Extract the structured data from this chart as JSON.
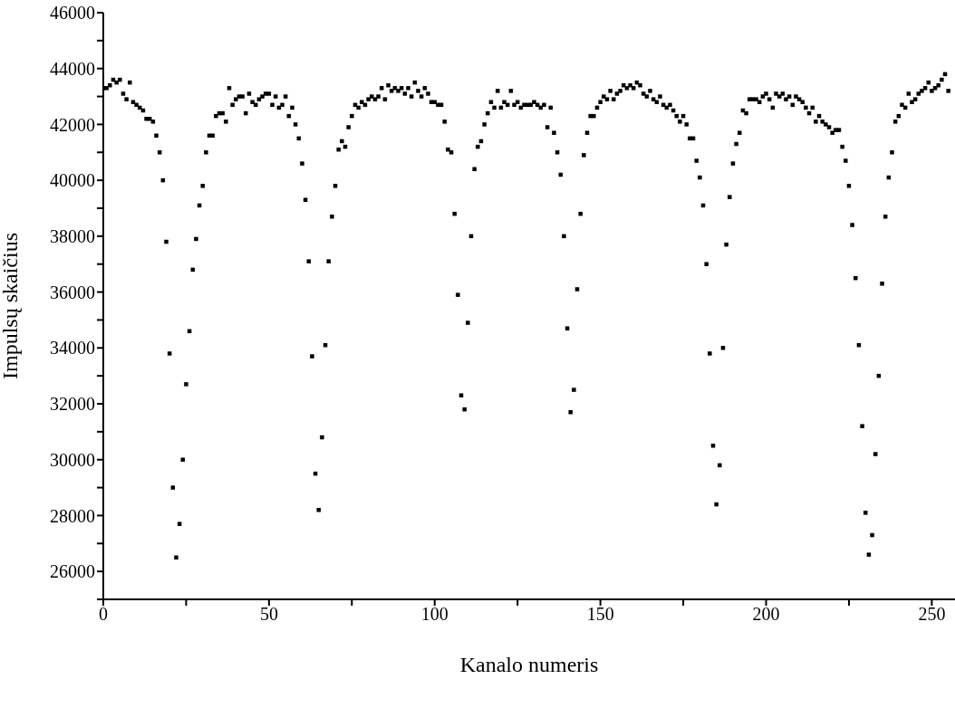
{
  "chart_data": {
    "type": "scatter",
    "xlabel": "Kanalo numeris",
    "ylabel": "Impulsų skaičius",
    "x": [
      0,
      1,
      2,
      3,
      4,
      5,
      6,
      7,
      8,
      9,
      10,
      11,
      12,
      13,
      14,
      15,
      16,
      17,
      18,
      19,
      20,
      21,
      22,
      23,
      24,
      25,
      26,
      27,
      28,
      29,
      30,
      31,
      32,
      33,
      34,
      35,
      36,
      37,
      38,
      39,
      40,
      41,
      42,
      43,
      44,
      45,
      46,
      47,
      48,
      49,
      50,
      51,
      52,
      53,
      54,
      55,
      56,
      57,
      58,
      59,
      60,
      61,
      62,
      63,
      64,
      65,
      66,
      67,
      68,
      69,
      70,
      71,
      72,
      73,
      74,
      75,
      76,
      77,
      78,
      79,
      80,
      81,
      82,
      83,
      84,
      85,
      86,
      87,
      88,
      89,
      90,
      91,
      92,
      93,
      94,
      95,
      96,
      97,
      98,
      99,
      100,
      101,
      102,
      103,
      104,
      105,
      106,
      107,
      108,
      109,
      110,
      111,
      112,
      113,
      114,
      115,
      116,
      117,
      118,
      119,
      120,
      121,
      122,
      123,
      124,
      125,
      126,
      127,
      128,
      129,
      130,
      131,
      132,
      133,
      134,
      135,
      136,
      137,
      138,
      139,
      140,
      141,
      142,
      143,
      144,
      145,
      146,
      147,
      148,
      149,
      150,
      151,
      152,
      153,
      154,
      155,
      156,
      157,
      158,
      159,
      160,
      161,
      162,
      163,
      164,
      165,
      166,
      167,
      168,
      169,
      170,
      171,
      172,
      173,
      174,
      175,
      176,
      177,
      178,
      179,
      180,
      181,
      182,
      183,
      184,
      185,
      186,
      187,
      188,
      189,
      190,
      191,
      192,
      193,
      194,
      195,
      196,
      197,
      198,
      199,
      200,
      201,
      202,
      203,
      204,
      205,
      206,
      207,
      208,
      209,
      210,
      211,
      212,
      213,
      214,
      215,
      216,
      217,
      218,
      219,
      220,
      221,
      222,
      223,
      224,
      225,
      226,
      227,
      228,
      229,
      230,
      231,
      232,
      233,
      234,
      235,
      236,
      237,
      238,
      239,
      240,
      241,
      242,
      243,
      244,
      245,
      246,
      247,
      248,
      249,
      250,
      251,
      252,
      253,
      254,
      255
    ],
    "series": [
      {
        "color": "#000000",
        "values": [
          43300,
          43300,
          43400,
          43600,
          43500,
          43600,
          43100,
          42900,
          43500,
          42800,
          42700,
          42600,
          42500,
          42200,
          42200,
          42100,
          41600,
          41000,
          40000,
          37800,
          33800,
          29000,
          26500,
          27700,
          30000,
          32700,
          34600,
          36800,
          37900,
          39100,
          39800,
          41000,
          41600,
          41600,
          42300,
          42400,
          42400,
          42100,
          43300,
          42700,
          42900,
          43000,
          43000,
          42400,
          43100,
          42800,
          42700,
          42900,
          43000,
          43100,
          43100,
          42700,
          43000,
          42600,
          42700,
          43000,
          42300,
          42600,
          42000,
          41500,
          40600,
          39300,
          37100,
          33700,
          29500,
          28200,
          30800,
          34100,
          37100,
          38700,
          39800,
          41100,
          41400,
          41200,
          41900,
          42300,
          42700,
          42600,
          42800,
          42700,
          42900,
          43000,
          42900,
          43000,
          43300,
          42900,
          43400,
          43200,
          43300,
          43200,
          43300,
          43100,
          43300,
          43000,
          43500,
          43200,
          43000,
          43300,
          43100,
          42800,
          42800,
          42700,
          42700,
          42100,
          41100,
          41000,
          38800,
          35900,
          32300,
          31800,
          34900,
          38000,
          40400,
          41200,
          41400,
          42000,
          42400,
          42800,
          42600,
          43200,
          42600,
          42800,
          42700,
          43200,
          42700,
          42800,
          42600,
          42700,
          42700,
          42700,
          42800,
          42700,
          42600,
          42700,
          41900,
          42600,
          41700,
          41000,
          40200,
          38000,
          34700,
          31700,
          32500,
          36100,
          38800,
          40900,
          41700,
          42300,
          42300,
          42600,
          42800,
          43000,
          42900,
          43200,
          42900,
          43100,
          43200,
          43400,
          43300,
          43400,
          43300,
          43500,
          43400,
          43100,
          43000,
          43200,
          42900,
          42800,
          43000,
          42700,
          42600,
          42700,
          42500,
          42300,
          42100,
          42300,
          42000,
          41500,
          41500,
          40700,
          40100,
          39100,
          37000,
          33800,
          30500,
          28400,
          29800,
          34000,
          37700,
          39400,
          40600,
          41300,
          41700,
          42500,
          42400,
          42900,
          42900,
          42900,
          42800,
          43000,
          43100,
          42900,
          42600,
          43100,
          43000,
          43100,
          42900,
          43000,
          42700,
          43000,
          42900,
          42800,
          42600,
          42400,
          42600,
          42100,
          42300,
          42100,
          42000,
          41900,
          41700,
          41800,
          41800,
          41200,
          40700,
          39800,
          38400,
          36500,
          34100,
          31200,
          28100,
          26600,
          27300,
          30200,
          33000,
          36300,
          38700,
          40100,
          41000,
          42100,
          42300,
          42700,
          42600,
          43100,
          42800,
          42900,
          43100,
          43200,
          43300,
          43500,
          43200,
          43300,
          43400,
          43600,
          43800,
          43200
        ]
      }
    ],
    "xlim": [
      0,
      257
    ],
    "xticks": [
      0,
      {
        "value": 25,
        "label": null
      },
      50,
      {
        "value": 75,
        "label": null
      },
      100,
      {
        "value": 125,
        "label": null
      },
      150,
      {
        "value": 175,
        "label": null
      },
      200,
      {
        "value": 225,
        "label": null
      },
      250
    ],
    "ylim": [
      25000,
      46000
    ],
    "yticks": [
      {
        "value": 25000,
        "label": null
      },
      26000,
      {
        "value": 27000,
        "label": null
      },
      28000,
      {
        "value": 29000,
        "label": null
      },
      30000,
      {
        "value": 31000,
        "label": null
      },
      32000,
      {
        "value": 33000,
        "label": null
      },
      34000,
      {
        "value": 35000,
        "label": null
      },
      36000,
      {
        "value": 37000,
        "label": null
      },
      38000,
      {
        "value": 39000,
        "label": null
      },
      40000,
      {
        "value": 41000,
        "label": null
      },
      42000,
      {
        "value": 43000,
        "label": null
      },
      44000,
      {
        "value": 45000,
        "label": null
      },
      46000
    ],
    "grid": false,
    "legend": false,
    "marker": "square"
  }
}
